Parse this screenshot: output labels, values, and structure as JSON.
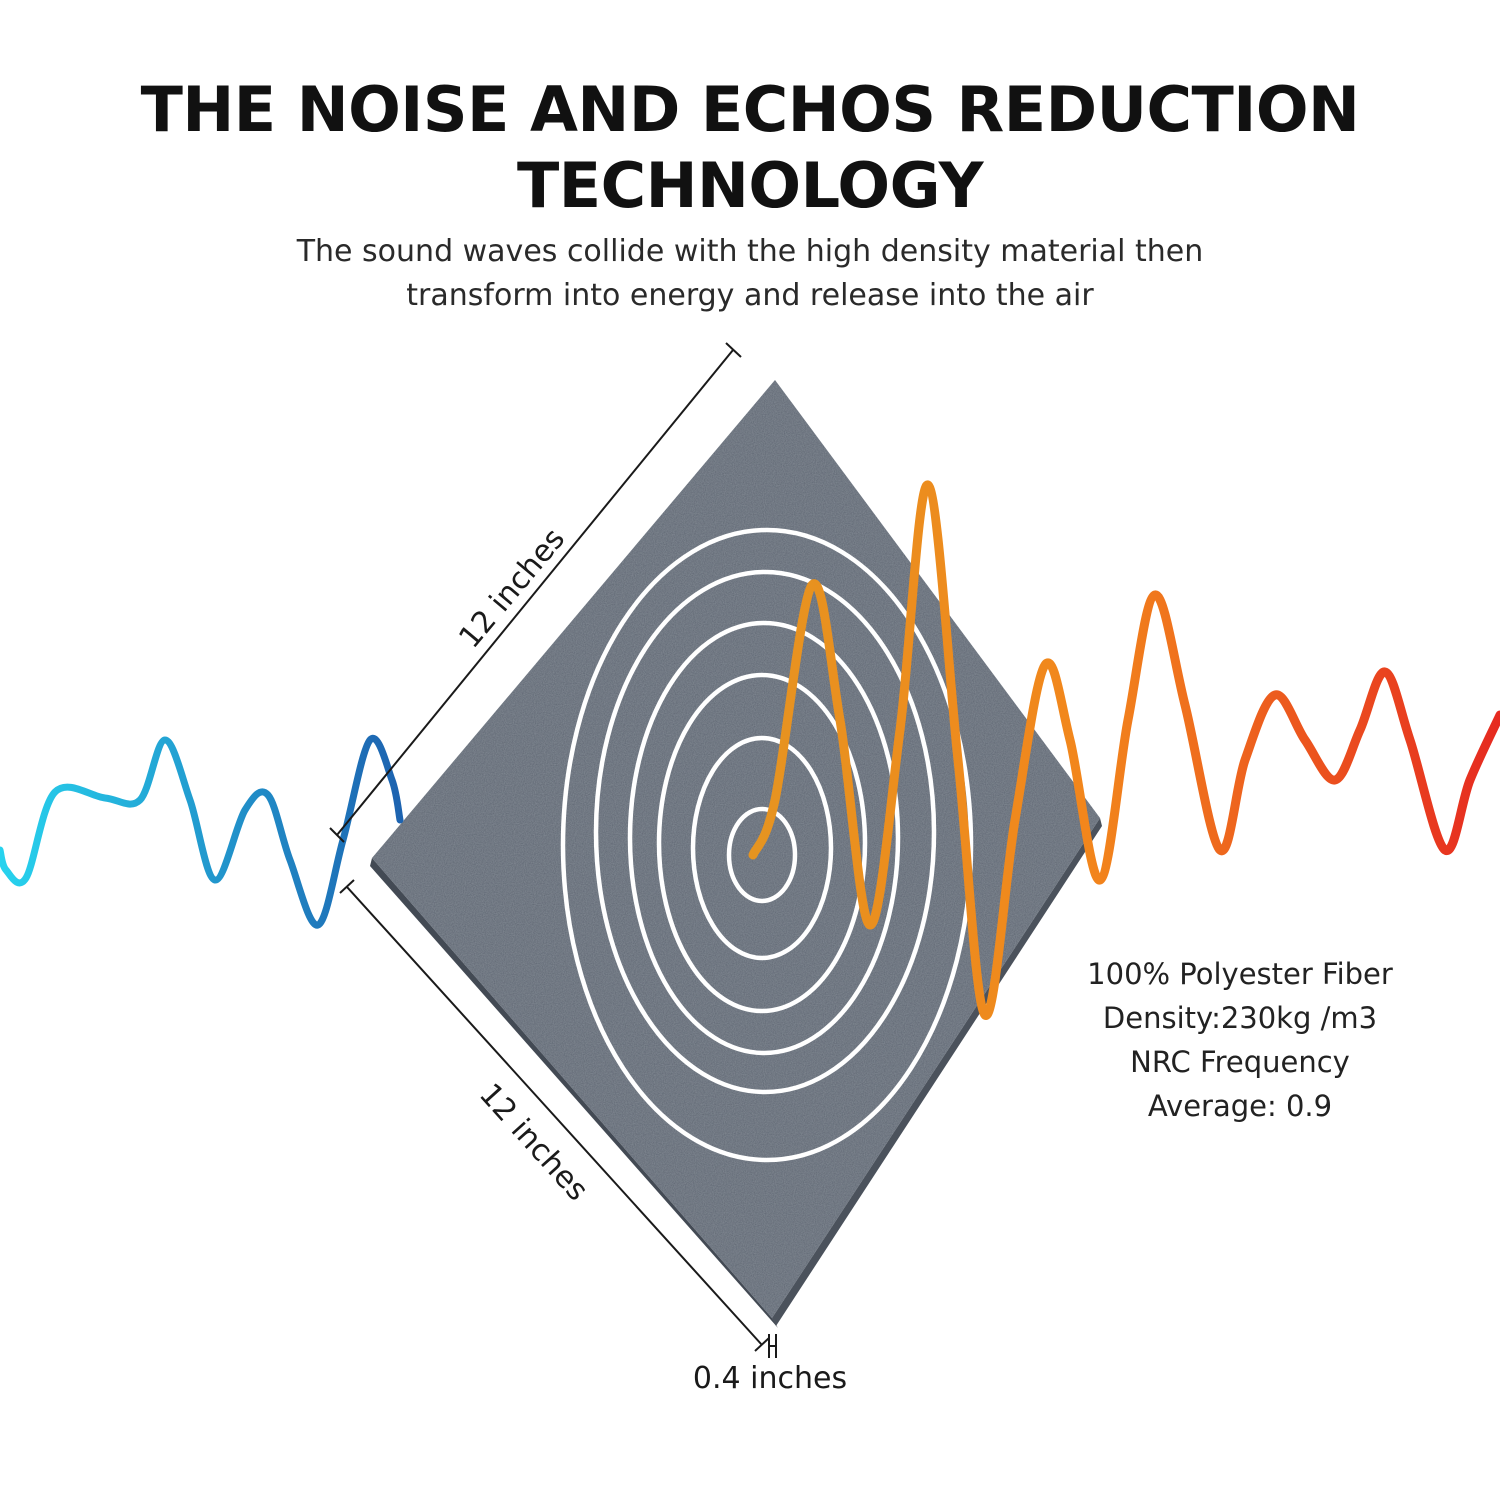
{
  "header": {
    "title_line1": "THE NOISE AND ECHOS REDUCTION",
    "title_line2": "TECHNOLOGY",
    "subtitle_line1": "The sound waves collide with the high density material then",
    "subtitle_line2": "transform into energy and release into the air"
  },
  "dimensions": {
    "top_edge": "12 inches",
    "bottom_edge": "12 inches",
    "thickness": "0.4 inches"
  },
  "specs": {
    "line1": "100% Polyester Fiber",
    "line2": "Density:230kg /m3",
    "line3": "NRC Frequency",
    "line4": "Average: 0.9"
  },
  "colors": {
    "panel": "#5b6470",
    "incoming_wave_start": "#27d3ee",
    "incoming_wave_end": "#1d63b0",
    "outgoing_wave_start": "#f0931f",
    "outgoing_wave_end": "#e62a20",
    "rings": "#ffffff"
  }
}
